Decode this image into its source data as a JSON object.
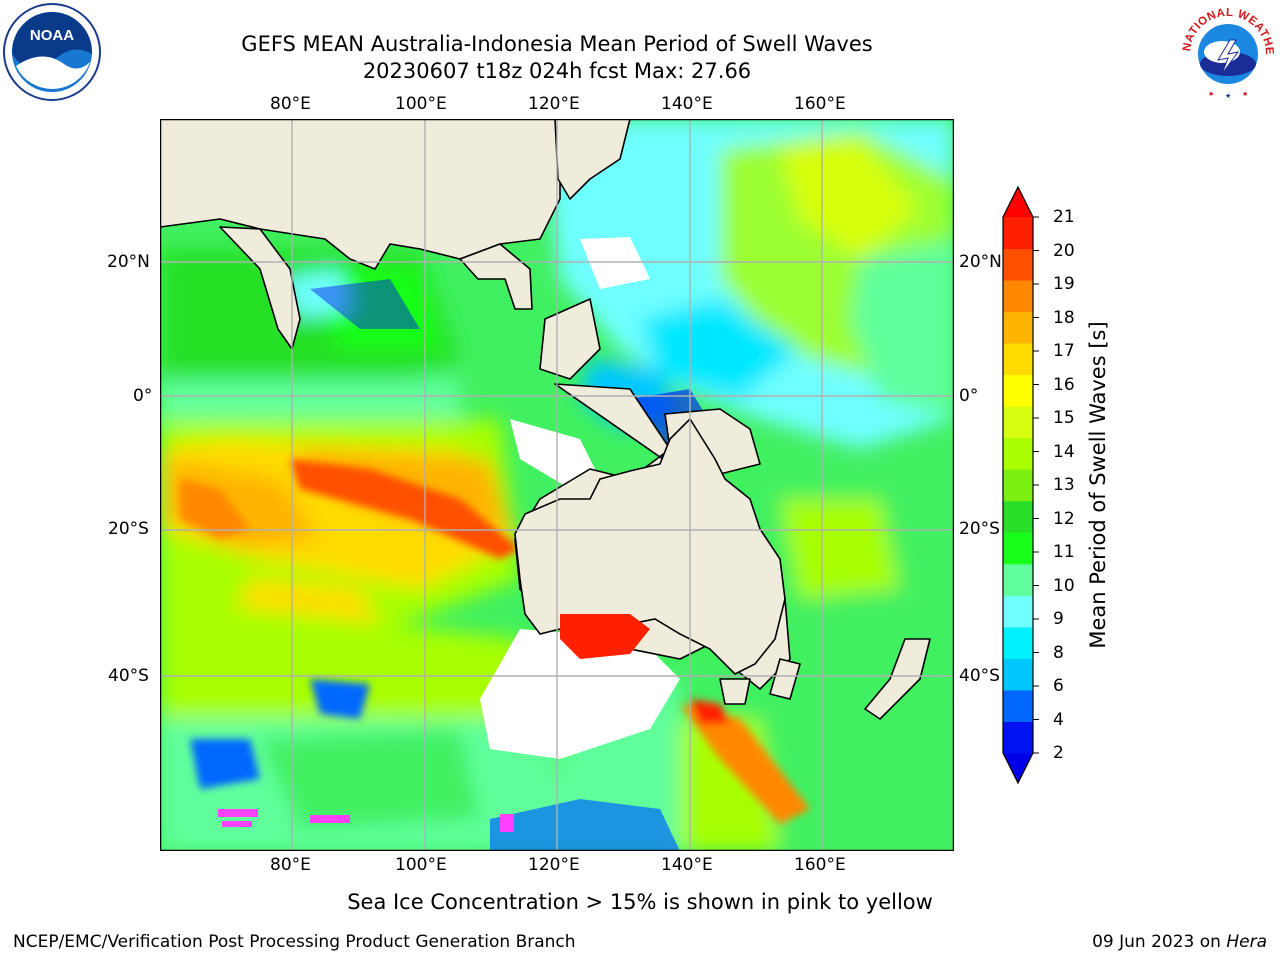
{
  "title": {
    "line1": "GEFS MEAN Australia-Indonesia Mean Period of Swell Waves",
    "line2": "20230607 t18z 024h fcst   Max: 27.66"
  },
  "logos": {
    "left": {
      "icon": "noaa-logo",
      "text": "NOAA"
    },
    "right": {
      "icon": "nws-logo",
      "text": "NATIONAL WEATHER SERVICE"
    }
  },
  "map": {
    "lon_range": [
      60,
      180
    ],
    "lat_range": [
      -68,
      42
    ],
    "lon_ticks": [
      "80°E",
      "100°E",
      "120°E",
      "140°E",
      "160°E"
    ],
    "lat_ticks": [
      "20°N",
      "0°",
      "20°S",
      "40°S"
    ],
    "gridlines": true,
    "land_color": "#efecdc",
    "no_data_color": "#ffffff"
  },
  "colorbar": {
    "label": "Mean Period of Swell Waves [s]",
    "ticks": [
      "2",
      "4",
      "6",
      "8",
      "9",
      "10",
      "11",
      "12",
      "13",
      "14",
      "15",
      "16",
      "17",
      "18",
      "19",
      "20",
      "21"
    ],
    "colors": [
      "#0012f0",
      "#0068ff",
      "#00c8ff",
      "#00f0ff",
      "#70ffff",
      "#60ff9c",
      "#18ff18",
      "#28e028",
      "#7cf010",
      "#a8ff00",
      "#d8ff10",
      "#ffff00",
      "#ffdc00",
      "#ffb400",
      "#ff8800",
      "#ff5000",
      "#ff2000"
    ],
    "extend_low": "#0000e8",
    "extend_high": "#ff0000"
  },
  "footer": {
    "note": "Sea Ice Concentration > 15% is shown in pink to yellow",
    "left": "NCEP/EMC/Verification Post Processing Product Generation Branch",
    "right_date": "09 Jun 2023 on",
    "right_host": "Hera"
  }
}
